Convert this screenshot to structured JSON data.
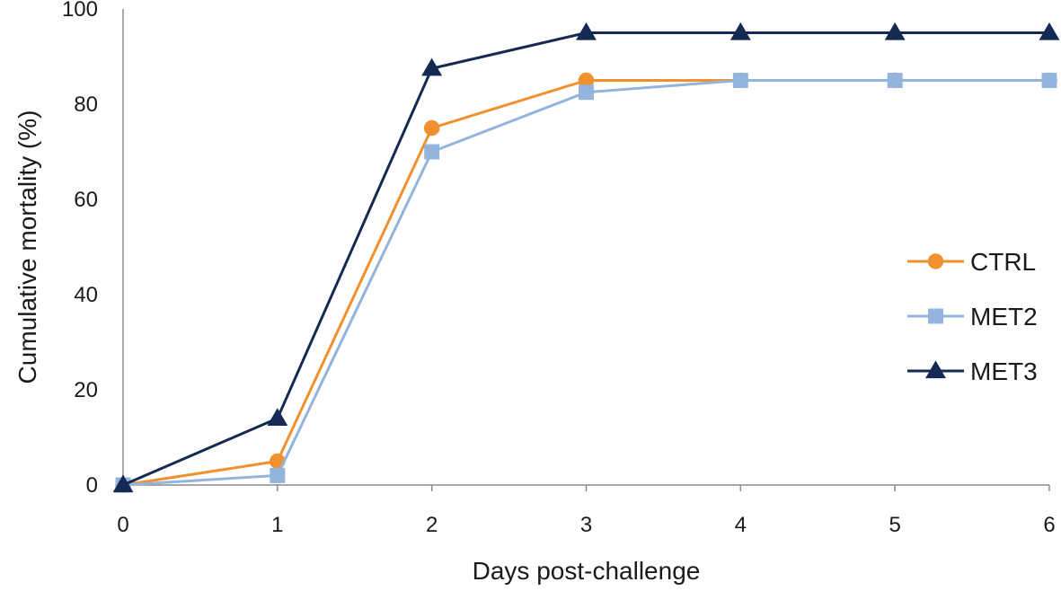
{
  "chart_data": {
    "type": "line",
    "title": "",
    "xlabel": "Days post-challenge",
    "ylabel": "Cumulative mortality (%)",
    "x": [
      0,
      1,
      2,
      3,
      4,
      5,
      6
    ],
    "xlim": [
      0,
      6
    ],
    "ylim": [
      0,
      100
    ],
    "yticks": [
      0,
      20,
      40,
      60,
      80,
      100
    ],
    "grid": false,
    "legend_position": "right",
    "series": [
      {
        "name": "CTRL",
        "values": [
          0,
          5,
          75,
          85,
          85,
          85,
          85
        ],
        "color": "#f0902e",
        "marker": "circle"
      },
      {
        "name": "MET2",
        "values": [
          0,
          2,
          70,
          82.5,
          85,
          85,
          85
        ],
        "color": "#93b4dc",
        "marker": "square"
      },
      {
        "name": "MET3",
        "values": [
          0,
          14,
          87.5,
          95,
          95,
          95,
          95
        ],
        "color": "#142a52",
        "marker": "triangle"
      }
    ]
  }
}
